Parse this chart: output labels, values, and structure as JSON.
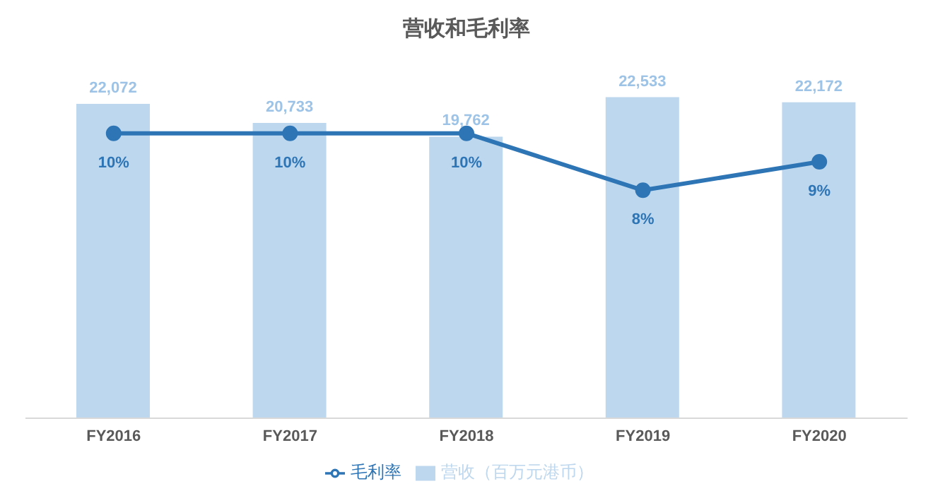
{
  "chart_data": {
    "type": "bar",
    "title": "营收和毛利率",
    "categories": [
      "FY2016",
      "FY2017",
      "FY2018",
      "FY2019",
      "FY2020"
    ],
    "series": [
      {
        "name": "营收（百万元港币）",
        "color": "#bdd7ee",
        "values": [
          22072,
          20733,
          19762,
          22533,
          22172
        ],
        "value_labels": [
          "22,072",
          "20,733",
          "19,762",
          "22,533",
          "22,172"
        ]
      },
      {
        "name": "毛利率",
        "type": "line",
        "axis": "y2",
        "color": "#2e75b6",
        "values": [
          10,
          10,
          10,
          8,
          9
        ],
        "value_labels": [
          "10%",
          "10%",
          "10%",
          "8%",
          "9%"
        ]
      }
    ],
    "tick_labels": "x",
    "grid": false,
    "legend": "bottom",
    "marker": "circle"
  }
}
